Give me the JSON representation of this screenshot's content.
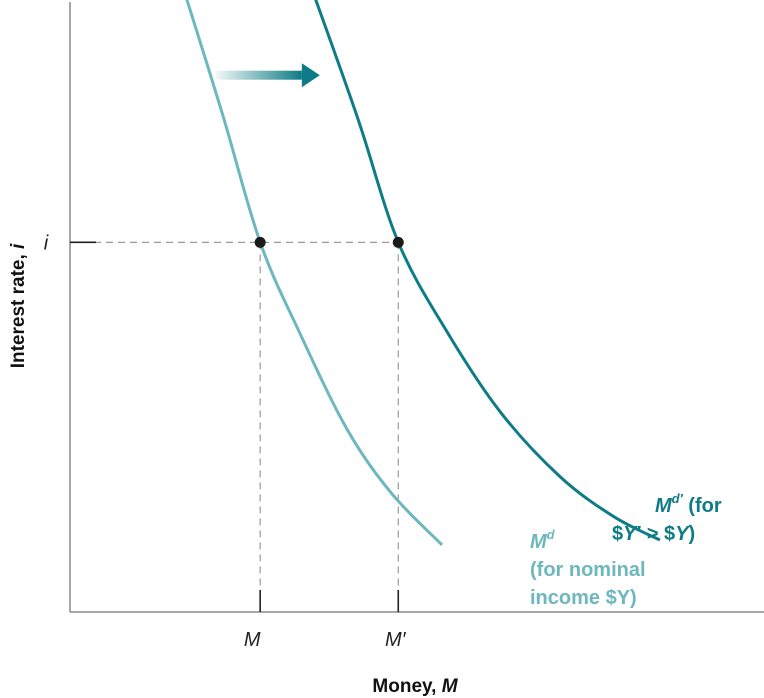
{
  "chart_data": {
    "type": "line",
    "title": "",
    "xlabel": "Money, M",
    "xlabel_parts": {
      "text": "Money, ",
      "var": "M"
    },
    "ylabel": "Interest rate, i",
    "ylabel_parts": {
      "text": "Interest rate, ",
      "var": "i"
    },
    "x_ticks": [
      "M",
      "M′"
    ],
    "y_ticks": [
      "i"
    ],
    "xlim": [
      0,
      10
    ],
    "ylim": [
      0,
      10
    ],
    "series": [
      {
        "name": "Md (for nominal income $Y)",
        "color": "#6db7bf",
        "points": [
          [
            1.64,
            10.2
          ],
          [
            2.2,
            8.15
          ],
          [
            2.74,
            6.06
          ],
          [
            3.3,
            4.6
          ],
          [
            3.99,
            3.0
          ],
          [
            4.63,
            1.95
          ],
          [
            5.36,
            1.1
          ]
        ]
      },
      {
        "name": "Md′ (for $Y′ > $Y)",
        "color": "#0e7c86",
        "points": [
          [
            3.49,
            10.2
          ],
          [
            4.15,
            8.08
          ],
          [
            4.73,
            6.06
          ],
          [
            5.43,
            4.6
          ],
          [
            6.2,
            3.28
          ],
          [
            7.06,
            2.22
          ],
          [
            7.84,
            1.56
          ],
          [
            8.5,
            1.18
          ]
        ]
      }
    ],
    "markers": [
      {
        "name": "M at i",
        "x": 2.74,
        "y": 6.06
      },
      {
        "name": "M′ at i",
        "x": 4.73,
        "y": 6.06
      }
    ],
    "annotations": [
      {
        "type": "arrow",
        "meaning": "rightward shift of money demand",
        "from_x": 2.1,
        "to_x": 3.6,
        "y": 8.8,
        "color": "#0e7c86"
      }
    ],
    "curve_labels": {
      "md": {
        "base": "M",
        "sup": "d",
        "line2": "(for nominal",
        "line3": "income $Y)",
        "color": "#6db7bf"
      },
      "md_prime": {
        "base": "M",
        "sup": "d′",
        "suffix": " (for",
        "line2_pre": "$",
        "line2_y1": "Y",
        "line2_mid": "′ > $",
        "line2_y2": "Y",
        "line2_post": ")",
        "color": "#0e7c86"
      }
    },
    "grid": false,
    "legend": "none"
  }
}
